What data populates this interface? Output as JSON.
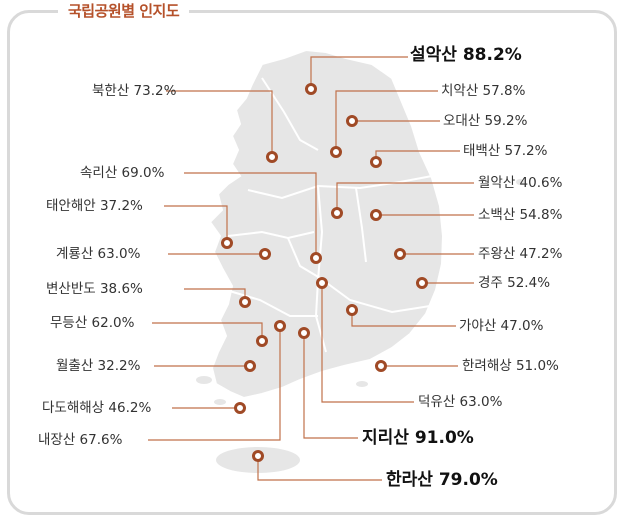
{
  "title": "국립공원별 인지도",
  "colors": {
    "accent": "#b5512a",
    "leader": "#c0714b",
    "dot": "#a04a26",
    "map_fill": "#e6e6e6",
    "map_stroke": "#ffffff"
  },
  "parks": [
    {
      "id": "seoraksan",
      "label": "설악산 88.2%"
    },
    {
      "id": "bukhansan",
      "label": "북한산 73.2%"
    },
    {
      "id": "chiaksan",
      "label": "치악산 57.8%"
    },
    {
      "id": "odaesan",
      "label": "오대산 59.2%"
    },
    {
      "id": "taebaeksan",
      "label": "태백산 57.2%"
    },
    {
      "id": "songnisan",
      "label": "속리산 69.0%"
    },
    {
      "id": "woraksan",
      "label": "월악산 40.6%"
    },
    {
      "id": "taeanhaean",
      "label": "태안해안 37.2%"
    },
    {
      "id": "sobaeksan",
      "label": "소백산 54.8%"
    },
    {
      "id": "gyeryongsan",
      "label": "계룡산 63.0%"
    },
    {
      "id": "juwangsan",
      "label": "주왕산 47.2%"
    },
    {
      "id": "byeonsanbando",
      "label": "변산반도 38.6%"
    },
    {
      "id": "gyeongju",
      "label": "경주 52.4%"
    },
    {
      "id": "mudeungsan",
      "label": "무등산 62.0%"
    },
    {
      "id": "gayasan",
      "label": "가야산 47.0%"
    },
    {
      "id": "wolchulsan",
      "label": "월출산 32.2%"
    },
    {
      "id": "hallyeohaesang",
      "label": "한려해상 51.0%"
    },
    {
      "id": "dadohaehaesang",
      "label": "다도해해상 46.2%"
    },
    {
      "id": "deogyusan",
      "label": "덕유산 63.0%"
    },
    {
      "id": "naejangsan",
      "label": "내장산 67.6%"
    },
    {
      "id": "jirisan",
      "label": "지리산 91.0%"
    },
    {
      "id": "hallasan",
      "label": "한라산 79.0%"
    }
  ]
}
